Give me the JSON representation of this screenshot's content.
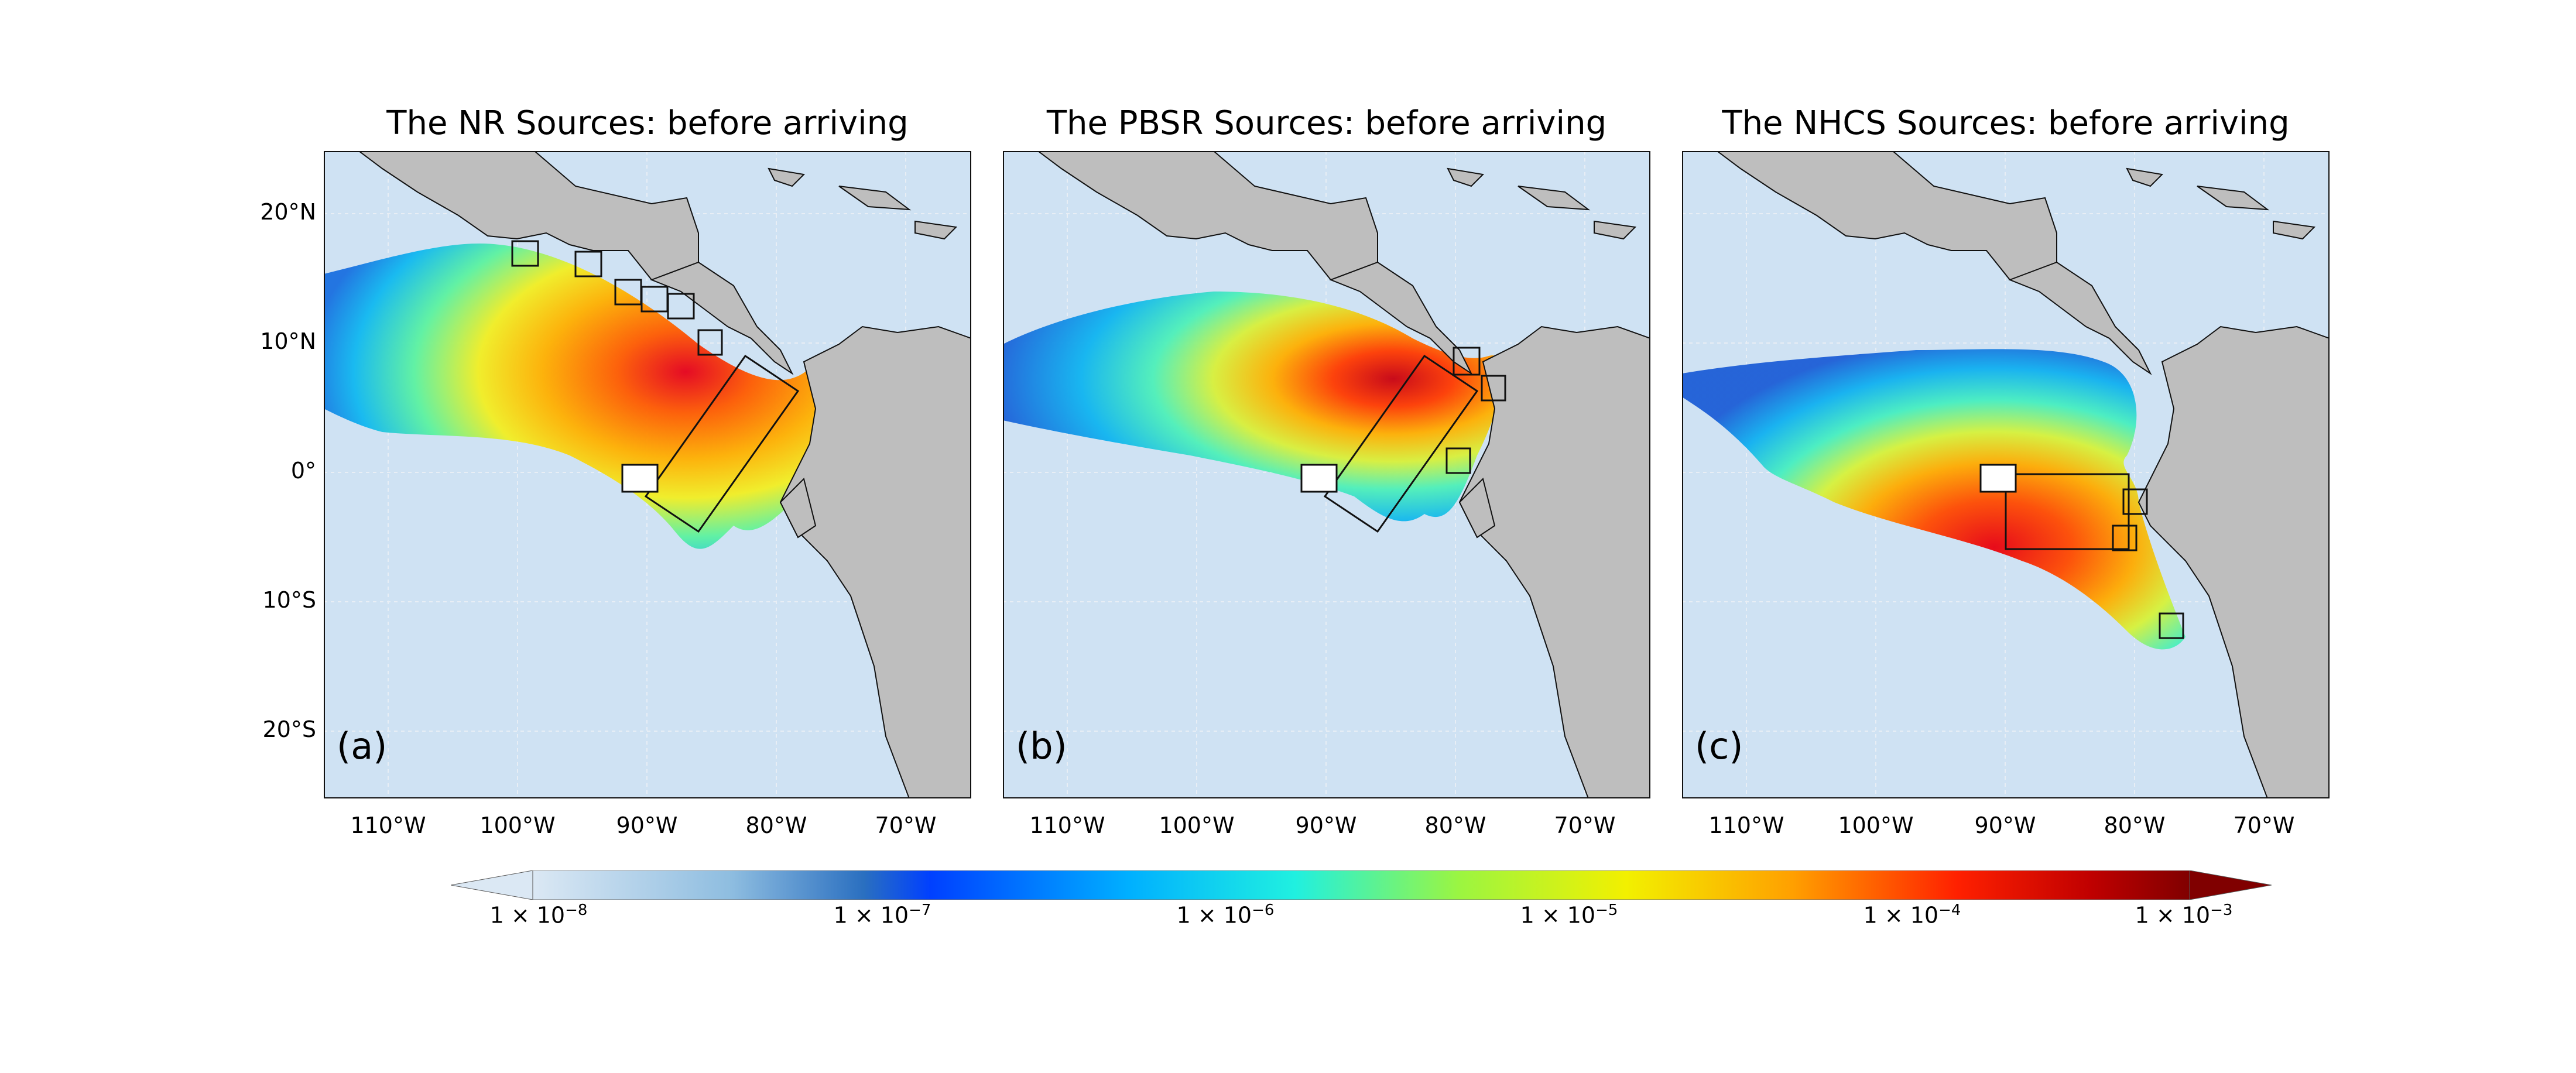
{
  "figure": {
    "panels": [
      {
        "id": "a",
        "title": "The NR Sources: before arriving",
        "label": "(a)"
      },
      {
        "id": "b",
        "title": "The PBSR Sources: before arriving",
        "label": "(b)"
      },
      {
        "id": "c",
        "title": "The NHCS Sources: before arriving",
        "label": "(c)"
      }
    ],
    "lat_ticks": [
      "20°N",
      "10°N",
      "0°",
      "10°S",
      "20°S"
    ],
    "lon_ticks": [
      "110°W",
      "100°W",
      "90°W",
      "80°W",
      "70°W"
    ],
    "colorbar": {
      "ticks": [
        {
          "base": "1 × 10",
          "exp": "−8"
        },
        {
          "base": "1 × 10",
          "exp": "−7"
        },
        {
          "base": "1 × 10",
          "exp": "−6"
        },
        {
          "base": "1 × 10",
          "exp": "−5"
        },
        {
          "base": "1 × 10",
          "exp": "−4"
        },
        {
          "base": "1 × 10",
          "exp": "−3"
        }
      ],
      "scale": "log",
      "extend": "both",
      "colormap": "jet"
    },
    "colors": {
      "ocean": "#cfe2f3",
      "land": "#bebebe",
      "coast": "#111111"
    }
  }
}
